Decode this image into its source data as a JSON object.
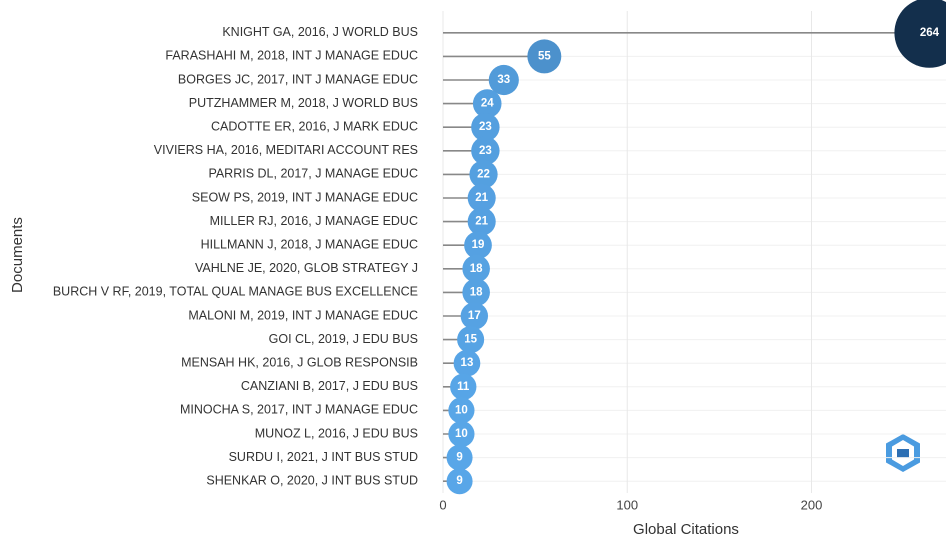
{
  "chart_data": {
    "type": "lollipop",
    "x_label": "Global Citations",
    "y_label": "Documents",
    "categories": [
      "KNIGHT GA, 2016, J WORLD BUS",
      "FARASHAHI M, 2018, INT J MANAGE EDUC",
      "BORGES JC, 2017, INT J MANAGE EDUC",
      "PUTZHAMMER M, 2018, J WORLD BUS",
      "CADOTTE ER, 2016, J MARK EDUC",
      "VIVIERS HA, 2016, MEDITARI ACCOUNT RES",
      "PARRIS DL, 2017, J MANAGE EDUC",
      "SEOW PS, 2019, INT J MANAGE EDUC",
      "MILLER RJ, 2016, J MANAGE EDUC",
      "HILLMANN J, 2018, J MANAGE EDUC",
      "VAHLNE JE, 2020, GLOB STRATEGY J",
      "BURCH V RF, 2019, TOTAL QUAL MANAGE BUS EXCELLENCE",
      "MALONI M, 2019, INT J MANAGE EDUC",
      "GOI CL, 2019, J EDU BUS",
      "MENSAH HK, 2016, J GLOB RESPONSIB",
      "CANZIANI B, 2017, J EDU BUS",
      "MINOCHA S, 2017, INT J MANAGE EDUC",
      "MUNOZ L, 2016, J EDU BUS",
      "SURDU I, 2021, J INT BUS STUD",
      "SHENKAR O, 2020, J INT BUS STUD"
    ],
    "values": [
      264,
      55,
      33,
      24,
      23,
      23,
      22,
      21,
      21,
      19,
      18,
      18,
      17,
      15,
      13,
      11,
      10,
      10,
      9,
      9
    ],
    "xlim": [
      0,
      273
    ],
    "xticks": [
      0,
      100,
      200
    ],
    "grid": true,
    "color_range": [
      "#58a6e8",
      "#132f4c"
    ],
    "stem_color": "#888888"
  }
}
